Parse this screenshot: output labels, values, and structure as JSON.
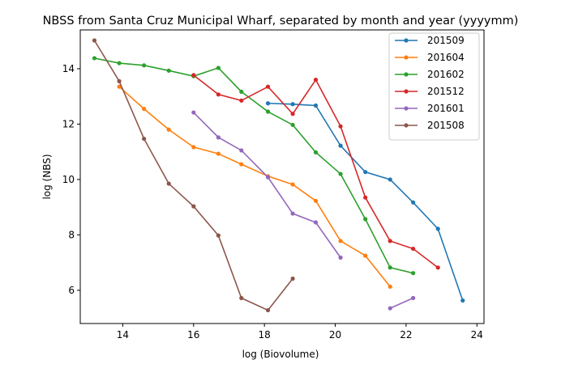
{
  "chart_data": {
    "type": "line",
    "title": "NBSS from Santa Cruz Municipal Wharf, separated by month and year (yyyymm)",
    "xlabel": "log (Biovolume)",
    "ylabel": "log (NBS)",
    "xlim": [
      12.8,
      24.2
    ],
    "ylim": [
      4.8,
      15.4
    ],
    "xticks": [
      14,
      16,
      18,
      20,
      22,
      24
    ],
    "yticks": [
      6,
      8,
      10,
      12,
      14
    ],
    "legend_position": "top-right",
    "grid": false,
    "series": [
      {
        "name": "201509",
        "color": "#1f77b4",
        "x": [
          18.1,
          18.8,
          19.45,
          20.15,
          20.85,
          21.55,
          22.2,
          22.9,
          23.6
        ],
        "y": [
          12.75,
          12.72,
          12.67,
          11.22,
          10.27,
          10.0,
          9.17,
          8.22,
          5.63
        ]
      },
      {
        "name": "201604",
        "color": "#ff7f0e",
        "x": [
          13.9,
          14.6,
          15.3,
          16.0,
          16.7,
          17.35,
          18.1,
          18.8,
          19.45,
          20.15,
          20.85,
          21.55
        ],
        "y": [
          13.35,
          12.55,
          11.8,
          11.17,
          10.93,
          10.55,
          10.12,
          9.82,
          9.23,
          7.78,
          7.25,
          6.13
        ]
      },
      {
        "name": "201602",
        "color": "#2ca02c",
        "x": [
          13.2,
          13.9,
          14.6,
          15.3,
          16.0,
          16.7,
          17.35,
          18.1,
          18.8,
          19.45,
          20.15,
          20.85,
          21.55,
          22.2
        ],
        "y": [
          14.38,
          14.2,
          14.12,
          13.93,
          13.73,
          14.03,
          13.17,
          12.45,
          11.97,
          10.98,
          10.2,
          8.57,
          6.82,
          6.62
        ]
      },
      {
        "name": "201512",
        "color": "#d62728",
        "x": [
          16.0,
          16.7,
          17.35,
          18.1,
          18.8,
          19.45,
          20.15,
          20.85,
          21.55,
          22.2,
          22.9
        ],
        "y": [
          13.77,
          13.07,
          12.85,
          13.35,
          12.37,
          13.6,
          11.92,
          9.35,
          7.78,
          7.5,
          6.82
        ]
      },
      {
        "name": "201601",
        "color": "#9467bd",
        "x": [
          16.0,
          16.7,
          17.35,
          18.1,
          18.8,
          19.45,
          20.15,
          null,
          21.55,
          22.2
        ],
        "y": [
          12.42,
          11.52,
          11.05,
          10.08,
          8.77,
          8.45,
          7.18,
          null,
          5.35,
          5.72
        ]
      },
      {
        "name": "201508",
        "color": "#8c564b",
        "x": [
          13.2,
          13.9,
          14.6,
          15.3,
          16.0,
          16.7,
          17.35,
          18.1,
          18.8
        ],
        "y": [
          15.02,
          13.55,
          11.47,
          9.85,
          9.03,
          7.98,
          5.72,
          5.28,
          6.42
        ]
      }
    ]
  }
}
